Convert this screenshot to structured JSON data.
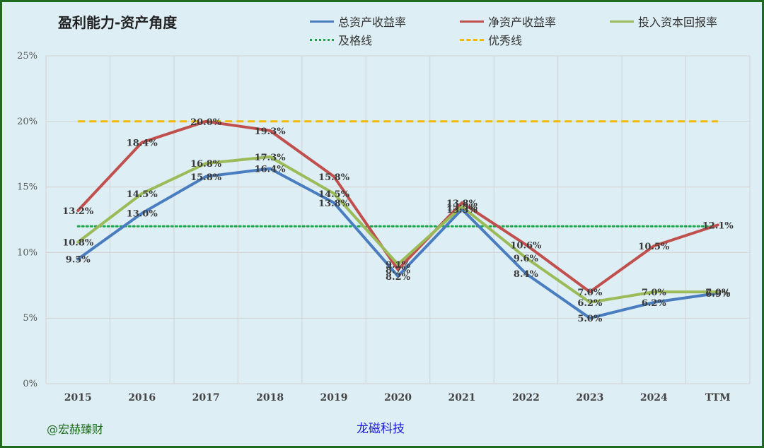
{
  "chart_data": {
    "type": "line",
    "title": "盈利能力-资产角度",
    "categories": [
      "2015",
      "2016",
      "2017",
      "2018",
      "2019",
      "2020",
      "2021",
      "2022",
      "2023",
      "2024",
      "TTM"
    ],
    "ylim": [
      0,
      25
    ],
    "y_ticks": [
      "0%",
      "5%",
      "10%",
      "15%",
      "20%",
      "25%"
    ],
    "y_tick_values": [
      0,
      5,
      10,
      15,
      20,
      25
    ],
    "grid": true,
    "legend_position": "top",
    "series": [
      {
        "name": "总资产收益率",
        "color": "#4a7dbf",
        "style": "solid",
        "values": [
          9.5,
          13.0,
          15.8,
          16.4,
          13.8,
          8.2,
          13.3,
          8.4,
          5.0,
          6.2,
          6.9
        ],
        "labels": [
          "9.5%",
          "13.0%",
          "15.8%",
          "16.4%",
          "13.8%",
          "8.2%",
          "13.3%",
          "8.4%",
          "5.0%",
          "6.2%",
          "6.9%"
        ]
      },
      {
        "name": "净资产收益率",
        "color": "#c0504d",
        "style": "solid",
        "values": [
          13.2,
          18.4,
          20.0,
          19.3,
          15.8,
          8.7,
          13.8,
          10.6,
          7.0,
          10.5,
          12.1
        ],
        "labels": [
          "13.2%",
          "18.4%",
          "20.0%",
          "19.3%",
          "15.8%",
          "8.7%",
          "13.8%",
          "10.6%",
          "7.0%",
          "10.5%",
          "12.1%"
        ]
      },
      {
        "name": "投入资本回报率",
        "color": "#9bbb59",
        "style": "solid",
        "values": [
          10.8,
          14.5,
          16.8,
          17.3,
          14.5,
          9.1,
          13.5,
          9.6,
          6.2,
          7.0,
          7.0
        ],
        "labels": [
          "10.8%",
          "14.5%",
          "16.8%",
          "17.3%",
          "14.5%",
          "9.1%",
          "13.5%",
          "9.6%",
          "6.2%",
          "7.0%",
          "7.0%"
        ]
      }
    ],
    "reference_lines": [
      {
        "name": "及格线",
        "value": 12,
        "color": "#1aa64a",
        "style": "dotted"
      },
      {
        "name": "优秀线",
        "value": 20,
        "color": "#f5b800",
        "style": "dashed"
      }
    ]
  },
  "footer": {
    "left": "@宏赫臻财",
    "center": "龙磁科技"
  }
}
